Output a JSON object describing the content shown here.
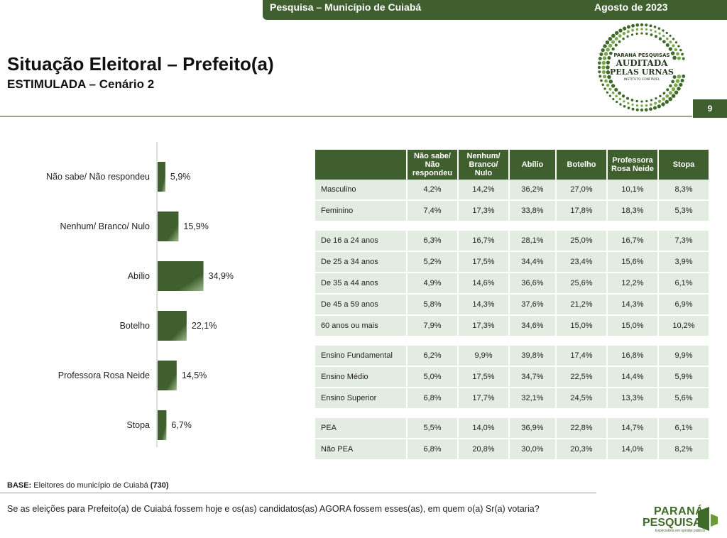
{
  "header": {
    "survey": "Pesquisa – Município de Cuiabá",
    "date": "Agosto de 2023",
    "page": "9"
  },
  "title": "Situação Eleitoral – Prefeito(a)",
  "subtitle": "ESTIMULADA – Cenário 2",
  "seal": {
    "line1": "PARANÁ PESQUISAS",
    "line2": "AUDITADA",
    "line3": "PELAS URNAS",
    "line4": "INSTITUTO CONFIÁVEL"
  },
  "chart_data": {
    "type": "bar",
    "orientation": "horizontal",
    "categories": [
      "Não sabe/ Não respondeu",
      "Nenhum/ Branco/ Nulo",
      "Abílio",
      "Botelho",
      "Professora Rosa Neide",
      "Stopa"
    ],
    "values": [
      5.9,
      15.9,
      34.9,
      22.1,
      14.5,
      6.7
    ],
    "value_labels": [
      "5,9%",
      "15,9%",
      "34,9%",
      "22,1%",
      "14,5%",
      "6,7%"
    ],
    "unit": "%",
    "color": "#3f5f2f",
    "grid": false,
    "legend": "none"
  },
  "table": {
    "headers": [
      "Não sabe/ Não respondeu",
      "Nenhum/ Branco/ Nulo",
      "Abílio",
      "Botelho",
      "Professora Rosa Neide",
      "Stopa"
    ],
    "groups": [
      [
        {
          "label": "Masculino",
          "values": [
            "4,2%",
            "14,2%",
            "36,2%",
            "27,0%",
            "10,1%",
            "8,3%"
          ]
        },
        {
          "label": "Feminino",
          "values": [
            "7,4%",
            "17,3%",
            "33,8%",
            "17,8%",
            "18,3%",
            "5,3%"
          ]
        }
      ],
      [
        {
          "label": "De 16 a 24 anos",
          "values": [
            "6,3%",
            "16,7%",
            "28,1%",
            "25,0%",
            "16,7%",
            "7,3%"
          ]
        },
        {
          "label": "De 25 a 34 anos",
          "values": [
            "5,2%",
            "17,5%",
            "34,4%",
            "23,4%",
            "15,6%",
            "3,9%"
          ]
        },
        {
          "label": "De 35 a 44 anos",
          "values": [
            "4,9%",
            "14,6%",
            "36,6%",
            "25,6%",
            "12,2%",
            "6,1%"
          ]
        },
        {
          "label": "De 45 a 59 anos",
          "values": [
            "5,8%",
            "14,3%",
            "37,6%",
            "21,2%",
            "14,3%",
            "6,9%"
          ]
        },
        {
          "label": "60 anos ou mais",
          "values": [
            "7,9%",
            "17,3%",
            "34,6%",
            "15,0%",
            "15,0%",
            "10,2%"
          ]
        }
      ],
      [
        {
          "label": "Ensino Fundamental",
          "values": [
            "6,2%",
            "9,9%",
            "39,8%",
            "17,4%",
            "16,8%",
            "9,9%"
          ]
        },
        {
          "label": "Ensino Médio",
          "values": [
            "5,0%",
            "17,5%",
            "34,7%",
            "22,5%",
            "14,4%",
            "5,9%"
          ]
        },
        {
          "label": "Ensino Superior",
          "values": [
            "6,8%",
            "17,7%",
            "32,1%",
            "24,5%",
            "13,3%",
            "5,6%"
          ]
        }
      ],
      [
        {
          "label": "PEA",
          "values": [
            "5,5%",
            "14,0%",
            "36,9%",
            "22,8%",
            "14,7%",
            "6,1%"
          ]
        },
        {
          "label": "Não PEA",
          "values": [
            "6,8%",
            "20,8%",
            "30,0%",
            "20,3%",
            "14,0%",
            "8,2%"
          ]
        }
      ]
    ]
  },
  "footer": {
    "base_label": "BASE:",
    "base_text": "Eleitores do município de Cuiabá",
    "base_count": "(730)",
    "question": "Se as eleições para Prefeito(a) de Cuiabá fossem hoje e os(as) candidatos(as) AGORA fossem esses(as), em quem o(a) Sr(a) votaria?"
  },
  "logo": {
    "line1": "PARANÁ",
    "line2": "PESQUISAS",
    "tagline": "Especialista em opinião pública"
  }
}
